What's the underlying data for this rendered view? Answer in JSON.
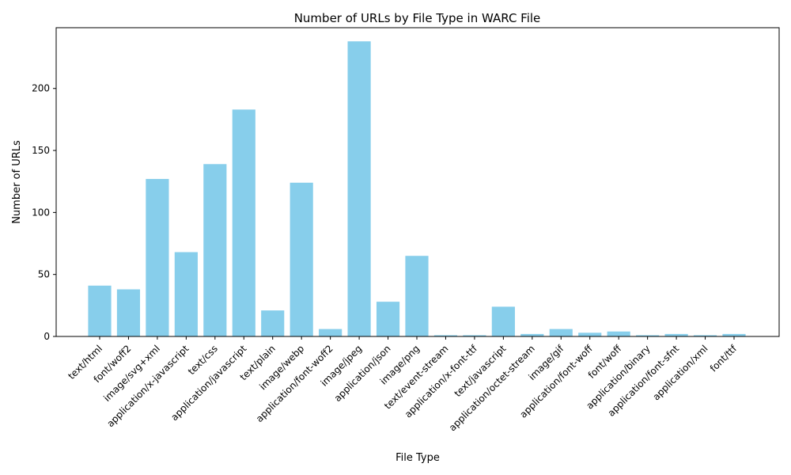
{
  "chart_data": {
    "type": "bar",
    "title": "Number of URLs by File Type in WARC File",
    "xlabel": "File Type",
    "ylabel": "Number of URLs",
    "categories": [
      "text/html",
      "font/woff2",
      "image/svg+xml",
      "application/x-javascript",
      "text/css",
      "application/javascript",
      "text/plain",
      "image/webp",
      "application/font-woff2",
      "image/jpeg",
      "application/json",
      "image/png",
      "text/event-stream",
      "application/x-font-ttf",
      "text/javascript",
      "application/octet-stream",
      "image/gif",
      "application/font-woff",
      "font/woff",
      "application/binary",
      "application/font-sfnt",
      "application/xml",
      "font/ttf"
    ],
    "values": [
      41,
      38,
      127,
      68,
      139,
      183,
      21,
      124,
      6,
      238,
      28,
      65,
      1,
      1,
      24,
      2,
      6,
      3,
      4,
      1,
      2,
      1,
      2
    ],
    "ylim": [
      0,
      249
    ],
    "yticks": [
      "0",
      "50",
      "100",
      "150",
      "200"
    ],
    "grid": false,
    "legend": "none",
    "bar_color": "#87CEEB"
  }
}
